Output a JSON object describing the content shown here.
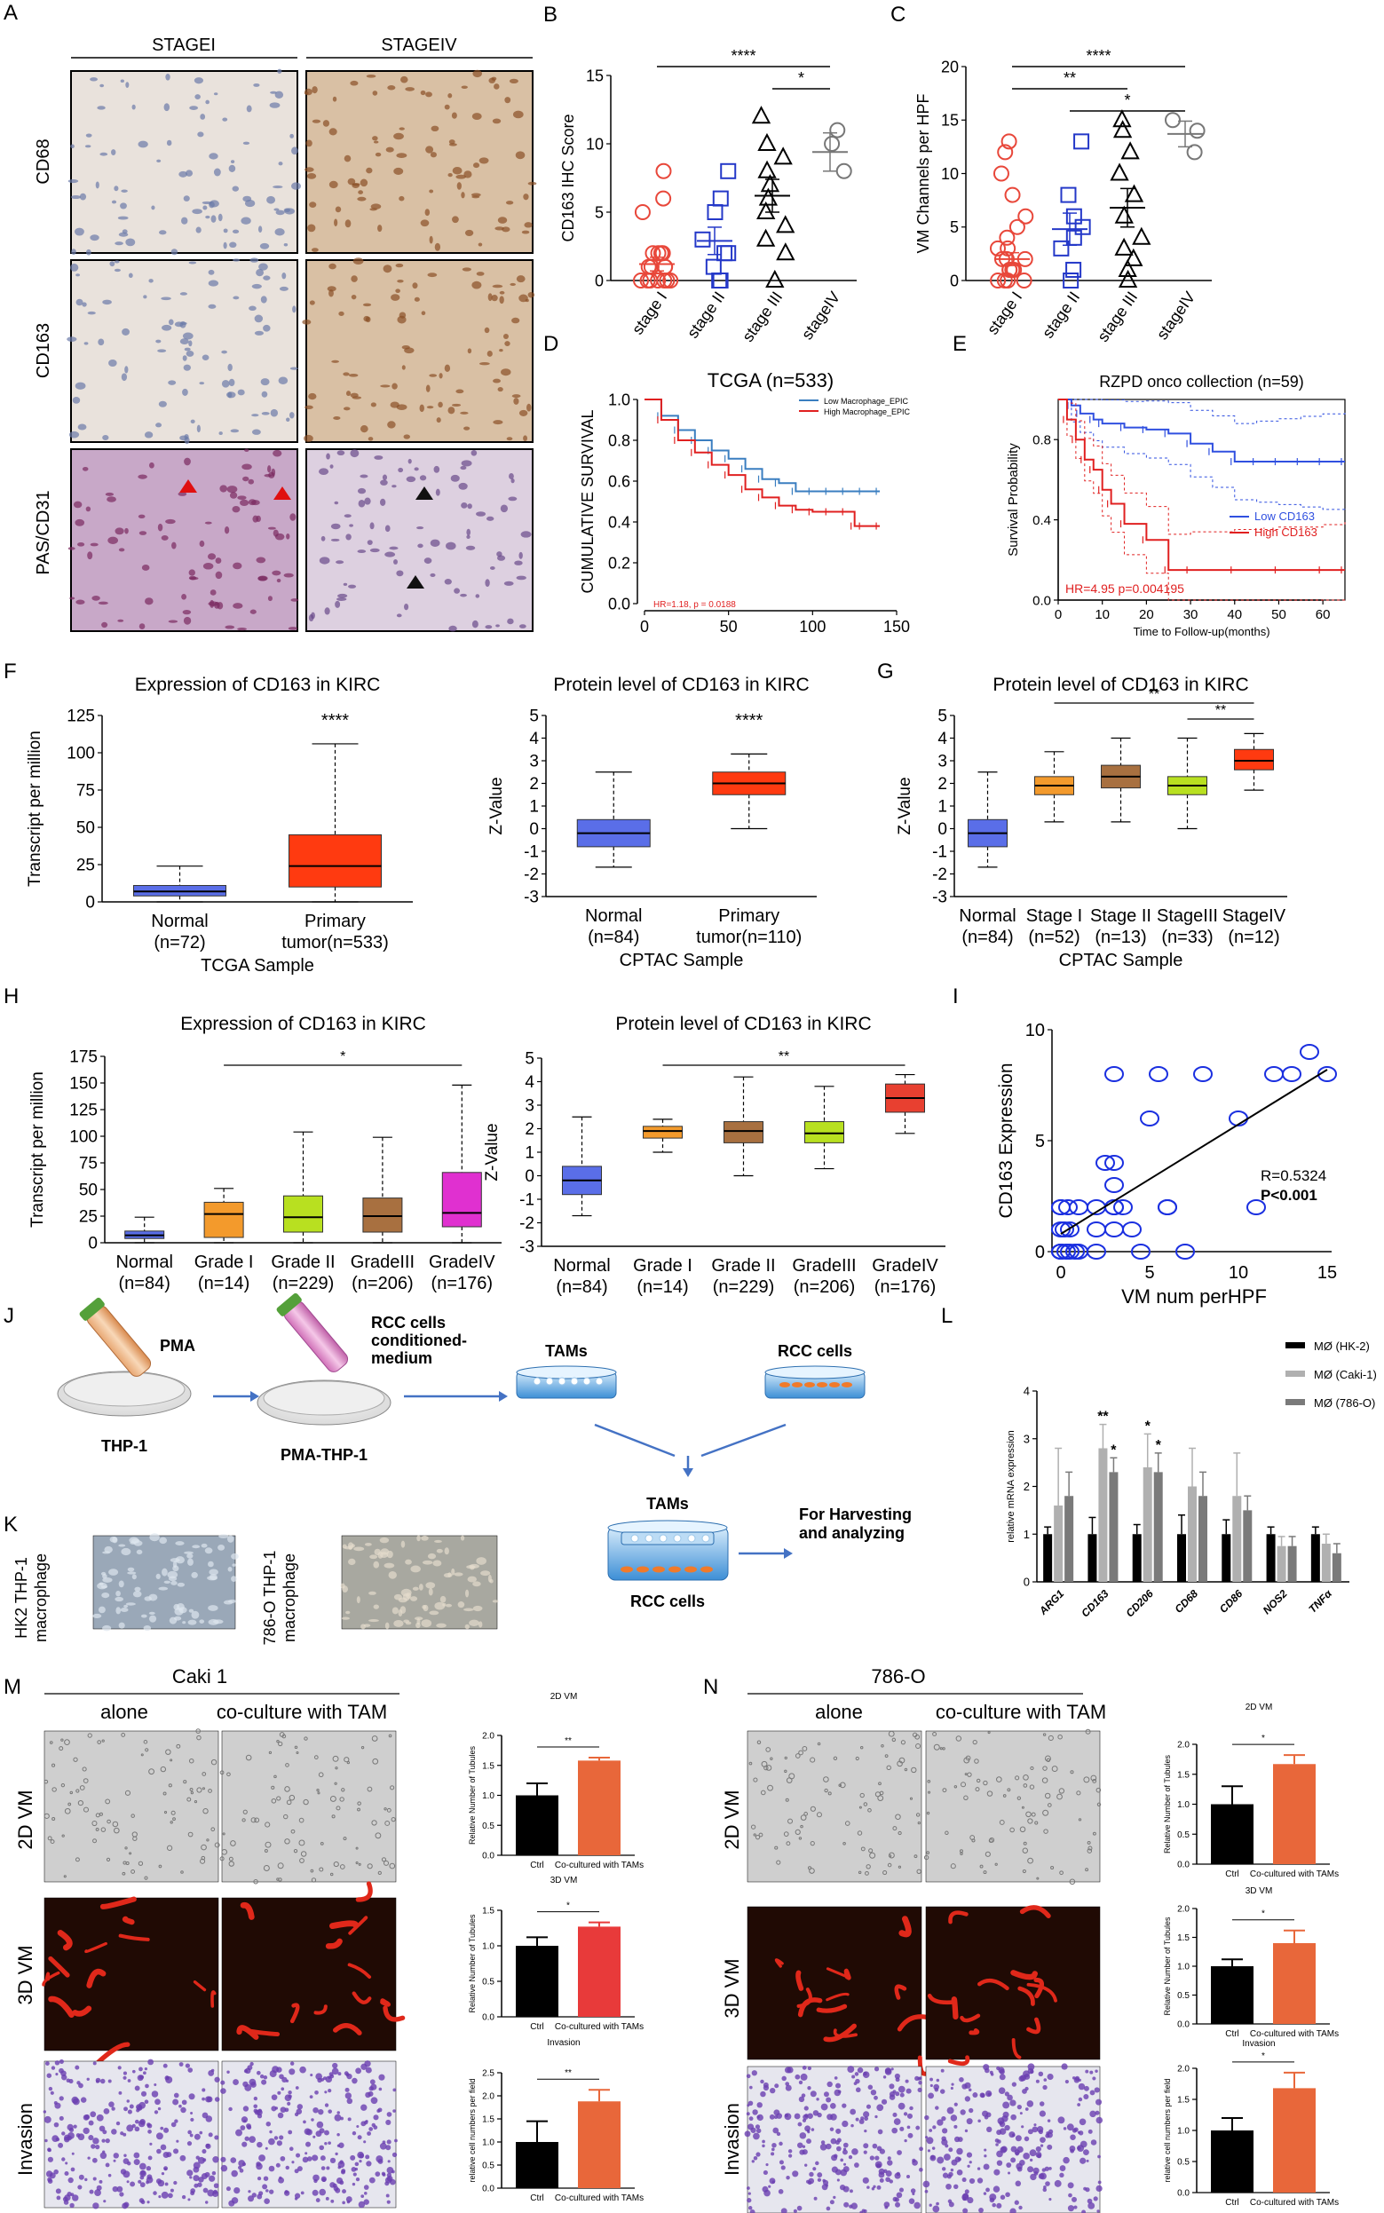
{
  "panels": {
    "A": {
      "letter": "A",
      "cols": [
        "STAGEI",
        "STAGEIV"
      ],
      "rows": [
        "CD68",
        "CD163",
        "PAS/CD31"
      ]
    },
    "B": {
      "letter": "B"
    },
    "C": {
      "letter": "C"
    },
    "D": {
      "letter": "D"
    },
    "E": {
      "letter": "E"
    },
    "F": {
      "letter": "F"
    },
    "G": {
      "letter": "G"
    },
    "H": {
      "letter": "H"
    },
    "I": {
      "letter": "I"
    },
    "J": {
      "letter": "J",
      "pma": "PMA",
      "rcc_cm": [
        "RCC cells",
        "conditioned-",
        "medium"
      ],
      "tams": "TAMs",
      "rcc": "RCC cells",
      "thp1": "THP-1",
      "pma_thp1": "PMA-THP-1",
      "tams2": "TAMs",
      "rcc2": "RCC cells",
      "harvest": [
        "For Harvesting",
        "and analyzing"
      ]
    },
    "K": {
      "letter": "K",
      "labels": [
        [
          "HK2 THP-1",
          "macrophage"
        ],
        [
          "786-O THP-1",
          "macrophage"
        ]
      ]
    },
    "L": {
      "letter": "L"
    },
    "M": {
      "letter": "M",
      "title": "Caki 1",
      "cols": [
        "alone",
        "co-culture with TAM"
      ],
      "rows": [
        "2D VM",
        "3D VM",
        "Invasion"
      ]
    },
    "N": {
      "letter": "N",
      "title": "786-O",
      "cols": [
        "alone",
        "co-culture with TAM"
      ],
      "rows": [
        "2D VM",
        "3D VM",
        "Invasion"
      ]
    }
  },
  "chart_data": [
    {
      "id": "B",
      "type": "scatter",
      "ylabel": "CD163 IHC Score",
      "ylim": [
        0,
        15
      ],
      "yticks": [
        0,
        5,
        10,
        15
      ],
      "categories": [
        "stage I",
        "stage II",
        "stage III",
        "stageIV"
      ],
      "means": [
        1.2,
        2.9,
        6.2,
        9.4
      ],
      "sems": [
        0.5,
        1.0,
        1.2,
        1.4
      ],
      "points": [
        [
          0,
          0,
          0,
          0,
          0,
          0,
          1,
          1,
          1,
          2,
          2,
          2,
          0,
          1,
          2,
          8,
          6,
          5
        ],
        [
          0,
          1,
          2,
          2,
          3,
          5,
          8,
          6,
          0
        ],
        [
          0,
          2,
          4,
          6,
          8,
          9,
          10,
          12,
          5,
          7,
          3
        ],
        [
          8,
          10,
          11
        ]
      ],
      "sig": [
        {
          "from": 0,
          "to": 3,
          "label": "****"
        },
        {
          "from": 2,
          "to": 3,
          "label": "*"
        }
      ]
    },
    {
      "id": "C",
      "type": "scatter",
      "ylabel": "VM Channels per HPF",
      "ylim": [
        0,
        20
      ],
      "yticks": [
        0,
        5,
        10,
        15,
        20
      ],
      "categories": [
        "stage I",
        "stage II",
        "stage III",
        "stageIV"
      ],
      "means": [
        2.0,
        4.8,
        6.8,
        13.7
      ],
      "sems": [
        0.6,
        1.5,
        1.8,
        1.2
      ],
      "points": [
        [
          0,
          0,
          0,
          1,
          1,
          1,
          2,
          2,
          3,
          3,
          4,
          5,
          6,
          8,
          10,
          13,
          12,
          0,
          1,
          2
        ],
        [
          0,
          1,
          3,
          5,
          8,
          13,
          6,
          4
        ],
        [
          0,
          1,
          2,
          4,
          6,
          8,
          10,
          12,
          14,
          15,
          3
        ],
        [
          12,
          14,
          15
        ]
      ],
      "sig": [
        {
          "from": 0,
          "to": 3,
          "label": "****"
        },
        {
          "from": 0,
          "to": 2,
          "label": "**"
        },
        {
          "from": 1,
          "to": 3,
          "label": "*"
        }
      ]
    },
    {
      "id": "D",
      "type": "line",
      "title": "TCGA (n=533)",
      "ylabel": "CUMULATIVE SURVIVAL",
      "xlim": [
        0,
        150
      ],
      "ylim": [
        0,
        1
      ],
      "xticks": [
        0,
        50,
        100,
        150
      ],
      "yticks": [
        0.0,
        0.2,
        0.4,
        0.6,
        0.8,
        1.0
      ],
      "annotation": "HR=1.18, p = 0.0188",
      "series": [
        {
          "name": "Low Macrophage_EPIC",
          "color": "#3a7ec0",
          "x": [
            0,
            10,
            20,
            30,
            40,
            50,
            60,
            70,
            80,
            90,
            100,
            110,
            120,
            130,
            140
          ],
          "y": [
            1.0,
            0.92,
            0.85,
            0.8,
            0.75,
            0.71,
            0.66,
            0.61,
            0.59,
            0.55,
            0.55,
            0.55,
            0.55,
            0.55,
            0.55
          ]
        },
        {
          "name": "High Macrophage_EPIC",
          "color": "#e02020",
          "x": [
            0,
            10,
            20,
            30,
            40,
            50,
            60,
            70,
            80,
            90,
            100,
            110,
            120,
            125,
            130,
            140
          ],
          "y": [
            1.0,
            0.9,
            0.8,
            0.74,
            0.68,
            0.63,
            0.56,
            0.52,
            0.48,
            0.46,
            0.45,
            0.45,
            0.45,
            0.38,
            0.38,
            0.38
          ]
        }
      ]
    },
    {
      "id": "E",
      "type": "line",
      "title": "RZPD onco collection (n=59)",
      "ylabel": "Survival Probability",
      "xlabel": "Time to Follow-up(months)",
      "xlim": [
        0,
        65
      ],
      "ylim": [
        0,
        1
      ],
      "xticks": [
        0,
        10,
        20,
        30,
        40,
        50,
        60
      ],
      "yticks": [
        0.0,
        0.4,
        0.8
      ],
      "annotation": "HR=4.95 p=0.004195",
      "series": [
        {
          "name": "Low  CD163",
          "color": "#3050e0",
          "x": [
            0,
            3,
            5,
            8,
            10,
            15,
            20,
            25,
            30,
            35,
            40,
            45,
            50,
            55,
            60,
            65
          ],
          "y": [
            1.0,
            0.97,
            0.93,
            0.9,
            0.88,
            0.86,
            0.85,
            0.83,
            0.78,
            0.74,
            0.69,
            0.69,
            0.69,
            0.69,
            0.69,
            0.69
          ]
        },
        {
          "name": "High CD163",
          "color": "#e02020",
          "x": [
            0,
            2,
            4,
            6,
            8,
            10,
            12,
            15,
            20,
            25,
            30,
            40,
            50,
            60,
            65
          ],
          "y": [
            1.0,
            0.9,
            0.8,
            0.7,
            0.65,
            0.55,
            0.48,
            0.38,
            0.3,
            0.15,
            0.15,
            0.15,
            0.15,
            0.15,
            0.15
          ]
        }
      ]
    },
    {
      "id": "F1",
      "type": "box",
      "title": "Expression of CD163 in KIRC",
      "ylabel": "Transcript per million",
      "xlabel": "TCGA Sample",
      "ylim": [
        0,
        125
      ],
      "yticks": [
        0,
        25,
        50,
        75,
        100,
        125
      ],
      "categories": [
        "Normal\n(n=72)",
        "Primary\ntumor(n=533)"
      ],
      "boxes": [
        [
          0,
          4,
          7,
          11,
          24
        ],
        [
          0,
          10,
          24,
          45,
          106
        ]
      ],
      "colors": [
        "#5a6ee8",
        "#ff3a10"
      ],
      "sig": [
        {
          "over": 1,
          "label": "****"
        }
      ]
    },
    {
      "id": "F2",
      "type": "box",
      "title": "Protein level of CD163 in KIRC",
      "ylabel": "Z-Value",
      "xlabel": "CPTAC Sample",
      "ylim": [
        -3,
        5
      ],
      "yticks": [
        -3,
        -2,
        -1,
        0,
        1,
        2,
        3,
        4,
        5
      ],
      "categories": [
        "Normal\n(n=84)",
        "Primary\ntumor(n=110)"
      ],
      "boxes": [
        [
          -1.7,
          -0.8,
          -0.2,
          0.4,
          2.5
        ],
        [
          0.0,
          1.5,
          2.0,
          2.5,
          3.3
        ]
      ],
      "colors": [
        "#5a6ee8",
        "#ff3a10"
      ],
      "sig": [
        {
          "over": 1,
          "label": "****"
        }
      ]
    },
    {
      "id": "G",
      "type": "box",
      "title": "Protein level of CD163 in KIRC",
      "ylabel": "Z-Value",
      "xlabel": "CPTAC Sample",
      "ylim": [
        -3,
        5
      ],
      "yticks": [
        -3,
        -2,
        -1,
        0,
        1,
        2,
        3,
        4,
        5
      ],
      "categories": [
        "Normal\n(n=84)",
        "Stage I\n(n=52)",
        "Stage II\n(n=13)",
        "StageIII\n(n=33)",
        "StageIV\n(n=12)"
      ],
      "boxes": [
        [
          -1.7,
          -0.8,
          -0.2,
          0.4,
          2.5
        ],
        [
          0.3,
          1.5,
          1.9,
          2.3,
          3.4
        ],
        [
          0.3,
          1.8,
          2.3,
          2.8,
          4.0
        ],
        [
          0.0,
          1.5,
          1.9,
          2.3,
          4.0
        ],
        [
          1.7,
          2.6,
          3.0,
          3.5,
          4.2
        ]
      ],
      "colors": [
        "#5a6ee8",
        "#f39a2c",
        "#a87040",
        "#b8e020",
        "#ff3a10"
      ],
      "sig": [
        {
          "from": 1,
          "to": 4,
          "label": "**"
        },
        {
          "from": 3,
          "to": 4,
          "label": "**"
        }
      ]
    },
    {
      "id": "H1",
      "type": "box",
      "title": "Expression of CD163 in KIRC",
      "ylabel": "Transcript per million",
      "ylim": [
        0,
        175
      ],
      "yticks": [
        0,
        25,
        50,
        75,
        100,
        125,
        150,
        175
      ],
      "categories": [
        "Normal\n(n=84)",
        "Grade I\n(n=14)",
        "Grade II\n(n=229)",
        "GradeIII\n(n=206)",
        "GradeIV\n(n=176)"
      ],
      "boxes": [
        [
          0,
          4,
          7,
          11,
          24
        ],
        [
          0,
          5,
          27,
          38,
          51
        ],
        [
          0,
          10,
          24,
          44,
          104
        ],
        [
          0,
          10,
          25,
          42,
          99
        ],
        [
          0,
          15,
          28,
          66,
          148
        ]
      ],
      "colors": [
        "#5a6ee8",
        "#f39a2c",
        "#b8e020",
        "#a87040",
        "#e030d0"
      ],
      "sig": [
        {
          "from": 1,
          "to": 4,
          "label": "*"
        }
      ]
    },
    {
      "id": "H2",
      "type": "box",
      "title": "Protein level of CD163 in KIRC",
      "ylabel": "Z-Value",
      "ylim": [
        -3,
        5
      ],
      "yticks": [
        -3,
        -2,
        -1,
        0,
        1,
        2,
        3,
        4,
        5
      ],
      "categories": [
        "Normal\n(n=84)",
        "Grade I\n(n=14)",
        "Grade II\n(n=229)",
        "GradeIII\n(n=206)",
        "GradeIV\n(n=176)"
      ],
      "boxes": [
        [
          -1.7,
          -0.8,
          -0.2,
          0.4,
          2.5
        ],
        [
          1.0,
          1.6,
          1.9,
          2.1,
          2.4
        ],
        [
          0.0,
          1.4,
          1.9,
          2.3,
          4.2
        ],
        [
          0.3,
          1.4,
          1.8,
          2.3,
          3.8
        ],
        [
          1.8,
          2.7,
          3.3,
          3.9,
          4.3
        ]
      ],
      "colors": [
        "#5a6ee8",
        "#f39a2c",
        "#a87040",
        "#b8e020",
        "#e84030"
      ],
      "sig": [
        {
          "from": 1,
          "to": 4,
          "label": "**"
        }
      ]
    },
    {
      "id": "I",
      "type": "scatter",
      "ylabel": "CD163 Expression",
      "xlabel": "VM num perHPF",
      "xlim": [
        0,
        15
      ],
      "ylim": [
        0,
        10
      ],
      "xticks": [
        0,
        5,
        10,
        15
      ],
      "yticks": [
        0,
        5,
        10
      ],
      "annotation": [
        "R=0.5324",
        "P<0.001"
      ],
      "x": [
        0,
        0,
        0,
        0,
        0,
        0,
        0.2,
        0.3,
        0.4,
        0.5,
        0.5,
        0.8,
        1,
        1,
        2,
        2,
        2,
        2.5,
        3,
        3,
        3,
        3,
        3,
        3,
        3.5,
        4,
        4.5,
        5,
        5.5,
        6,
        6,
        7,
        8,
        10,
        11,
        12,
        13,
        14,
        15
      ],
      "y": [
        0,
        0,
        0,
        1,
        2,
        2,
        1,
        0,
        2,
        0,
        1,
        0,
        0,
        2,
        0,
        2,
        1,
        4,
        3,
        2,
        8,
        1,
        4,
        2,
        2,
        1,
        0,
        6,
        8,
        2,
        2,
        0,
        8,
        6,
        2,
        8,
        8,
        9,
        8
      ],
      "fit": [
        [
          0,
          0.8
        ],
        [
          15,
          8.2
        ]
      ]
    },
    {
      "id": "L",
      "type": "bar",
      "ylabel": "relative mRNA expression",
      "ylim": [
        0,
        4
      ],
      "yticks": [
        0,
        1,
        2,
        3,
        4
      ],
      "categories": [
        "ARG1",
        "CD163",
        "CD206",
        "CD68",
        "CD86",
        "NOS2",
        "TNFα"
      ],
      "series": [
        {
          "name": "MØ (HK-2)",
          "color": "#000000",
          "values": [
            1,
            1,
            1,
            1,
            1,
            1,
            1
          ],
          "err": [
            0.15,
            0.35,
            0.2,
            0.4,
            0.3,
            0.15,
            0.15
          ]
        },
        {
          "name": "MØ (Caki-1)",
          "color": "#b0b0b0",
          "values": [
            1.6,
            2.8,
            2.4,
            2.0,
            1.8,
            0.75,
            0.8
          ],
          "err": [
            1.2,
            0.5,
            0.7,
            0.8,
            0.9,
            0.2,
            0.2
          ]
        },
        {
          "name": "MØ (786-O)",
          "color": "#7a7a7a",
          "values": [
            1.8,
            2.3,
            2.3,
            1.8,
            1.5,
            0.75,
            0.6
          ],
          "err": [
            0.5,
            0.3,
            0.4,
            0.5,
            0.3,
            0.2,
            0.2
          ]
        }
      ],
      "sig": [
        {
          "cat": 1,
          "s": 1,
          "label": "**"
        },
        {
          "cat": 1,
          "s": 2,
          "label": "*"
        },
        {
          "cat": 2,
          "s": 1,
          "label": "*"
        },
        {
          "cat": 2,
          "s": 2,
          "label": "*"
        }
      ]
    },
    {
      "id": "M1",
      "type": "bar",
      "title": "2D VM",
      "ylabel": "Relative Number of Tubules",
      "ylim": [
        0,
        2
      ],
      "yticks": [
        0,
        0.5,
        1.0,
        1.5,
        2.0
      ],
      "categories": [
        "Ctrl",
        "Co-cultured with TAMs"
      ],
      "values": [
        1.0,
        1.58
      ],
      "err": [
        0.2,
        0.05
      ],
      "colors": [
        "#000000",
        "#e8673a"
      ],
      "sig": "**"
    },
    {
      "id": "M2",
      "type": "bar",
      "title": "3D VM",
      "ylabel": "Relative Number of Tubules",
      "ylim": [
        0,
        1.5
      ],
      "yticks": [
        0,
        0.5,
        1.0,
        1.5
      ],
      "categories": [
        "Ctrl",
        "Co-cultured with TAMs"
      ],
      "values": [
        1.0,
        1.27
      ],
      "err": [
        0.12,
        0.06
      ],
      "colors": [
        "#000000",
        "#e83a3a"
      ],
      "sig": "*"
    },
    {
      "id": "M3",
      "type": "bar",
      "title": "Invasion",
      "ylabel": "relative cell numbers per field",
      "ylim": [
        0,
        2.5
      ],
      "yticks": [
        0,
        0.5,
        1.0,
        1.5,
        2.0,
        2.5
      ],
      "categories": [
        "Ctrl",
        "Co-cultured with TAMs"
      ],
      "values": [
        1.0,
        1.88
      ],
      "err": [
        0.45,
        0.25
      ],
      "colors": [
        "#000000",
        "#e8673a"
      ],
      "sig": "**"
    },
    {
      "id": "N1",
      "type": "bar",
      "title": "2D VM",
      "ylabel": "Relative Number of Tubules",
      "ylim": [
        0,
        2
      ],
      "yticks": [
        0,
        0.5,
        1.0,
        1.5,
        2.0
      ],
      "categories": [
        "Ctrl",
        "Co-cultured with TAMs"
      ],
      "values": [
        1.0,
        1.67
      ],
      "err": [
        0.3,
        0.15
      ],
      "colors": [
        "#000000",
        "#e8673a"
      ],
      "sig": "*"
    },
    {
      "id": "N2",
      "type": "bar",
      "title": "3D VM",
      "ylabel": "Relative Number of Tubules",
      "ylim": [
        0,
        2
      ],
      "yticks": [
        0,
        0.5,
        1.0,
        1.5,
        2.0
      ],
      "categories": [
        "Ctrl",
        "Co-cultured with TAMs"
      ],
      "values": [
        1.0,
        1.4
      ],
      "err": [
        0.12,
        0.22
      ],
      "colors": [
        "#000000",
        "#e8673a"
      ],
      "sig": "*"
    },
    {
      "id": "N3",
      "type": "bar",
      "title": "Invasion",
      "ylabel": "relative cell numbers per field",
      "ylim": [
        0,
        2
      ],
      "yticks": [
        0,
        0.5,
        1.0,
        1.5,
        2.0
      ],
      "categories": [
        "Ctrl",
        "Co-cultured with TAMs"
      ],
      "values": [
        1.0,
        1.68
      ],
      "err": [
        0.2,
        0.25
      ],
      "colors": [
        "#000000",
        "#e8673a"
      ],
      "sig": "*"
    }
  ]
}
